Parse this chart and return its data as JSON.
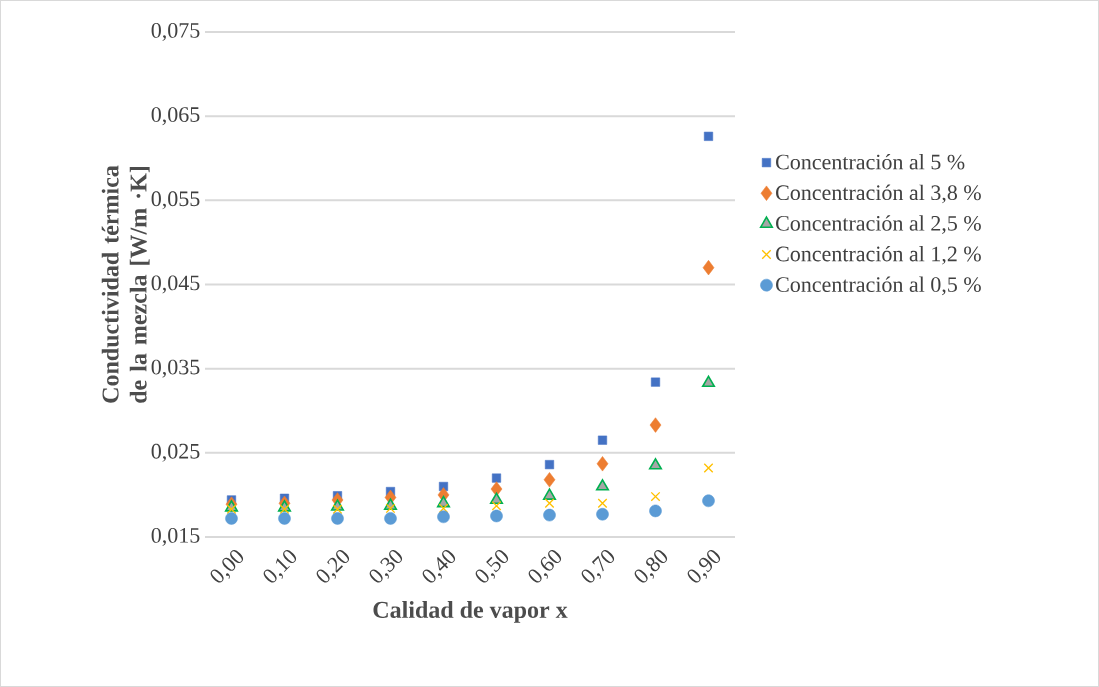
{
  "chart_data": {
    "type": "scatter",
    "xlabel": "Calidad de vapor x",
    "ylabel": "Conductividad térmica de la mezcla [W/m ·K]",
    "categories": [
      "0,00",
      "0,10",
      "0,20",
      "0,30",
      "0,40",
      "0,50",
      "0,60",
      "0,70",
      "0,80",
      "0,90"
    ],
    "ylim": [
      0.015,
      0.075
    ],
    "yticks": [
      {
        "value": 0.015,
        "label": "0,015"
      },
      {
        "value": 0.025,
        "label": "0,025"
      },
      {
        "value": 0.035,
        "label": "0,035"
      },
      {
        "value": 0.045,
        "label": "0,045"
      },
      {
        "value": 0.055,
        "label": "0,055"
      },
      {
        "value": 0.065,
        "label": "0,065"
      },
      {
        "value": 0.075,
        "label": "0,075"
      }
    ],
    "grid": "y",
    "legend": "right",
    "series": [
      {
        "name": "Concentración al 5 %",
        "color": "#4472c4",
        "marker": "square",
        "values": [
          0.0194,
          0.0196,
          0.0199,
          0.0204,
          0.021,
          0.022,
          0.0236,
          0.0265,
          0.0334,
          0.0626
        ]
      },
      {
        "name": "Concentración al 3,8 %",
        "color": "#ed7d31",
        "marker": "diamond",
        "values": [
          0.0189,
          0.019,
          0.0194,
          0.0197,
          0.02,
          0.0207,
          0.0218,
          0.0237,
          0.0283,
          0.047
        ]
      },
      {
        "name": "Concentración al 2,5 %",
        "color": "#00b050",
        "marker": "triangle",
        "values": [
          0.0185,
          0.0185,
          0.0186,
          0.0187,
          0.019,
          0.0194,
          0.0199,
          0.021,
          0.0235,
          0.0333
        ]
      },
      {
        "name": "Concentración al 1,2 %",
        "color": "#ffc000",
        "marker": "cross",
        "values": [
          0.0183,
          0.0183,
          0.0183,
          0.0184,
          0.0184,
          0.0187,
          0.019,
          0.019,
          0.0198,
          0.0232
        ]
      },
      {
        "name": "Concentración al 0,5 %",
        "color": "#5b9bd5",
        "marker": "circle",
        "values": [
          0.0172,
          0.0172,
          0.0172,
          0.0172,
          0.0174,
          0.0175,
          0.0176,
          0.0177,
          0.0181,
          0.0193
        ]
      }
    ]
  }
}
